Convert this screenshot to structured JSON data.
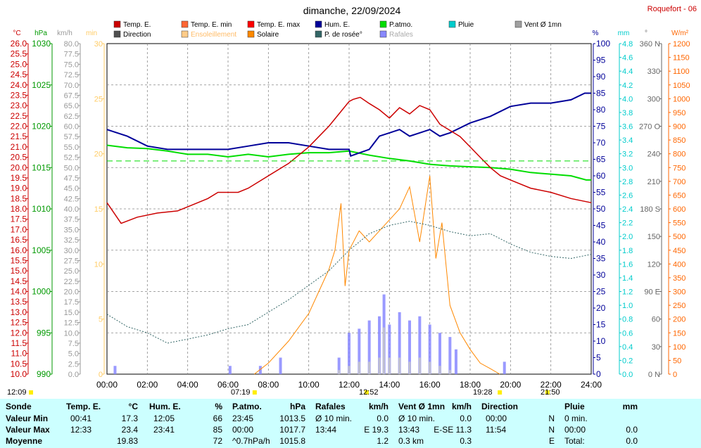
{
  "title": "dimanche, 22/09/2024",
  "station": "Roquefort - 06",
  "colors": {
    "temp": "#cc0000",
    "temp_min": "#ff6633",
    "temp_max": "#ff0000",
    "hum": "#000099",
    "patm": "#00dd00",
    "pluie": "#00cccc",
    "vent": "#a0a0a0",
    "direction": "#505050",
    "ensoleillement": "#ffcc88",
    "solaire": "#ff8800",
    "rosee": "#336666",
    "rafales": "#8888ff",
    "axis_temp": "#cc0000",
    "axis_hpa": "#009900",
    "axis_kmh": "#999999",
    "axis_min": "#ffcc66",
    "axis_pct": "#000099",
    "axis_mm": "#00cccc",
    "axis_deg": "#666666",
    "axis_wm2": "#ff6600",
    "table_bg": "#ccffff"
  },
  "legend": [
    {
      "label": "Temp. E.",
      "color": "#cc0000"
    },
    {
      "label": "Temp. E. min",
      "color": "#ff6633"
    },
    {
      "label": "Temp. E. max",
      "color": "#ff0000"
    },
    {
      "label": "Hum. E.",
      "color": "#000099"
    },
    {
      "label": "P.atmo.",
      "color": "#00dd00"
    },
    {
      "label": "Pluie",
      "color": "#00cccc"
    },
    {
      "label": "Vent Ø 1mn",
      "color": "#a0a0a0"
    },
    {
      "label": "Direction",
      "color": "#505050"
    },
    {
      "label": "Ensoleillement",
      "color": "#ffcc88"
    },
    {
      "label": "Solaire",
      "color": "#ff8800"
    },
    {
      "label": "P. de rosée°",
      "color": "#336666"
    },
    {
      "label": "Rafales",
      "color": "#8888ff"
    }
  ],
  "axis_units": {
    "temp": "°C",
    "hpa": "hPa",
    "kmh": "km/h",
    "min": "min",
    "pct": "%",
    "mm": "mm",
    "deg": "°",
    "wm2": "W/m²"
  },
  "axes": {
    "temp": [
      "26.0",
      "25.5",
      "25.0",
      "24.5",
      "24.0",
      "23.5",
      "23.0",
      "22.5",
      "22.0",
      "21.5",
      "21.0",
      "20.5",
      "20.0",
      "19.5",
      "19.0",
      "18.5",
      "18.0",
      "17.5",
      "17.0",
      "16.5",
      "16.0",
      "15.5",
      "15.0",
      "14.5",
      "14.0",
      "13.5",
      "13.0",
      "12.5",
      "12.0",
      "11.5",
      "11.0",
      "10.5",
      "10.0"
    ],
    "hpa": [
      "1030",
      "1025",
      "1020",
      "1015",
      "1010",
      "1005",
      "1000",
      "995",
      "990"
    ],
    "kmh": [
      "80.0",
      "77.5",
      "75.0",
      "72.5",
      "70.0",
      "67.5",
      "65.0",
      "62.5",
      "60.0",
      "57.5",
      "55.0",
      "52.5",
      "50.0",
      "47.5",
      "45.0",
      "42.5",
      "40.0",
      "37.5",
      "35.0",
      "32.5",
      "30.0",
      "27.5",
      "25.0",
      "22.5",
      "20.0",
      "17.5",
      "15.0",
      "12.5",
      "10.0",
      "7.5",
      "5.0",
      "2.5",
      "0.0"
    ],
    "min": [
      "30",
      "25",
      "20",
      "15",
      "10",
      "5",
      "0"
    ],
    "pct": [
      "100",
      "95",
      "90",
      "85",
      "80",
      "75",
      "70",
      "65",
      "60",
      "55",
      "50",
      "45",
      "40",
      "35",
      "30",
      "25",
      "20",
      "15",
      "10",
      "5",
      "0"
    ],
    "mm": [
      "4.8",
      "4.6",
      "4.4",
      "4.2",
      "4.0",
      "3.8",
      "3.6",
      "3.4",
      "3.2",
      "3.0",
      "2.8",
      "2.6",
      "2.4",
      "2.2",
      "2.0",
      "1.8",
      "1.6",
      "1.4",
      "1.2",
      "1.0",
      "0.8",
      "0.6",
      "0.4",
      "0.2",
      "0.0"
    ],
    "deg": [
      "360 N",
      "330",
      "300",
      "270 O",
      "240",
      "210",
      "180 S",
      "150",
      "120",
      "90 E",
      "60",
      "30",
      "0 N"
    ],
    "wm2": [
      "1200",
      "1150",
      "1100",
      "1050",
      "1000",
      "950",
      "900",
      "850",
      "800",
      "750",
      "700",
      "650",
      "600",
      "550",
      "500",
      "450",
      "400",
      "350",
      "300",
      "250",
      "200",
      "150",
      "100",
      "50",
      "0"
    ],
    "x": [
      "00:00",
      "02:00",
      "04:00",
      "06:00",
      "08:00",
      "10:00",
      "12:00",
      "14:00",
      "16:00",
      "18:00",
      "20:00",
      "22:00",
      "24:00"
    ]
  },
  "markers": {
    "t1": "12:09",
    "t2": "07:19",
    "t3": "12:52",
    "t4": "19:28",
    "t5": "21:50"
  },
  "table": {
    "headers": {
      "sonde": "Sonde",
      "temp": "Temp. E.",
      "temp_u": "°C",
      "hum": "Hum. E.",
      "hum_u": "%",
      "patm": "P.atmo.",
      "patm_u": "hPa",
      "raf": "Rafales",
      "raf_u": "km/h",
      "vent": "Vent Ø 1mn",
      "vent_u": "km/h",
      "dir": "Direction",
      "pluie": "Pluie",
      "pluie_u": "mm"
    },
    "rows": {
      "min": "Valeur Min",
      "max": "Valeur Max",
      "moy": "Moyenne"
    },
    "temp": [
      [
        "00:41",
        "17.3"
      ],
      [
        "12:33",
        "23.4"
      ],
      [
        "",
        "19.83"
      ]
    ],
    "hum": [
      [
        "12:05",
        "66"
      ],
      [
        "23:41",
        "85"
      ],
      [
        "",
        "72"
      ]
    ],
    "patm": [
      [
        "23:45",
        "1013.5"
      ],
      [
        "00:00",
        "1017.7"
      ],
      [
        "^0.7hPa/h",
        "1015.8"
      ]
    ],
    "raf": [
      [
        "Ø 10 min.",
        "0.0"
      ],
      [
        "13:44",
        "E 19.3"
      ],
      [
        "",
        "1.2"
      ]
    ],
    "vent": [
      [
        "Ø 10 min.",
        "0.0"
      ],
      [
        "13:43",
        "E-SE 11.3"
      ],
      [
        "0.3 km",
        "0.3"
      ]
    ],
    "dir": [
      [
        "00:00",
        "N"
      ],
      [
        "11:54",
        "N"
      ],
      [
        "",
        "E"
      ]
    ],
    "pluie": [
      [
        "0 min.",
        ""
      ],
      [
        "00:00",
        "0.0"
      ],
      [
        "Total:",
        "0.0"
      ]
    ]
  },
  "chart_data": {
    "type": "line",
    "title": "dimanche, 22/09/2024",
    "x_unit": "hour",
    "xlim": [
      0,
      24
    ],
    "series": [
      {
        "name": "Temp. E.",
        "unit": "°C",
        "x": [
          0,
          0.7,
          1.5,
          2.5,
          3.5,
          4,
          5,
          5.5,
          6,
          6.5,
          7,
          8,
          9,
          10,
          10.5,
          11,
          11.5,
          12,
          12.2,
          12.55,
          13,
          13.5,
          14,
          14.5,
          15,
          15.5,
          16,
          16.5,
          17,
          17.5,
          18,
          18.5,
          19,
          19.5,
          20,
          21,
          22,
          23,
          24
        ],
        "y": [
          18.3,
          17.3,
          17.6,
          17.8,
          17.9,
          18.1,
          18.5,
          18.8,
          18.8,
          18.8,
          19.0,
          19.6,
          20.2,
          21.0,
          21.5,
          22.0,
          22.6,
          23.2,
          23.3,
          23.4,
          23.1,
          22.8,
          22.4,
          22.9,
          22.6,
          23.0,
          22.8,
          22.1,
          21.8,
          21.5,
          21.0,
          20.5,
          20.0,
          19.6,
          19.4,
          19.0,
          18.8,
          18.5,
          18.3
        ]
      },
      {
        "name": "Hum. E.",
        "unit": "%",
        "x": [
          0,
          1,
          2,
          3,
          4,
          5,
          6,
          7,
          8,
          9,
          10,
          11,
          12,
          12.08,
          13,
          13.5,
          14,
          14.5,
          15,
          15.5,
          16,
          16.5,
          17,
          18,
          19,
          20,
          21,
          22,
          23,
          23.68,
          24
        ],
        "y": [
          74,
          72,
          69,
          68,
          68,
          68,
          68,
          69,
          70,
          70,
          69,
          68,
          68,
          66,
          68,
          72,
          73,
          74,
          72,
          73,
          74,
          72,
          73,
          76,
          78,
          81,
          82,
          82,
          83,
          85,
          85
        ]
      },
      {
        "name": "P.atmo.",
        "unit": "hPa",
        "x": [
          0,
          1,
          2,
          3,
          4,
          5,
          6,
          7,
          8,
          9,
          10,
          11,
          12,
          13,
          14,
          15,
          16,
          17,
          18,
          19,
          20,
          21,
          22,
          23,
          23.75,
          24
        ],
        "y": [
          1017.7,
          1017.4,
          1017.3,
          1017.0,
          1016.6,
          1016.6,
          1016.3,
          1016.6,
          1016.3,
          1016.6,
          1016.8,
          1016.8,
          1017.0,
          1016.5,
          1016.1,
          1015.8,
          1015.4,
          1015.2,
          1015.1,
          1015.0,
          1014.8,
          1014.4,
          1014.2,
          1014.0,
          1013.5,
          1013.5
        ]
      },
      {
        "name": "P. de rosée°",
        "unit": "°C",
        "x": [
          0,
          1,
          2,
          3,
          4,
          5,
          6,
          7,
          8,
          9,
          10,
          11,
          12,
          13,
          14,
          15,
          16,
          17,
          18,
          19,
          20,
          21,
          22,
          23,
          24
        ],
        "y": [
          12.9,
          12.3,
          12.0,
          11.5,
          11.7,
          11.9,
          12.2,
          12.4,
          13.0,
          13.6,
          14.3,
          15.0,
          16.0,
          16.8,
          17.2,
          17.4,
          17.2,
          16.9,
          16.7,
          16.8,
          16.3,
          15.9,
          15.7,
          15.6,
          15.8
        ]
      },
      {
        "name": "Solaire",
        "unit": "W/m²",
        "x": [
          7.3,
          8,
          9,
          10,
          10.5,
          11,
          11.3,
          11.6,
          11.8,
          12,
          12.5,
          13,
          13.5,
          14,
          14.5,
          15,
          15.5,
          16,
          16.3,
          16.6,
          17,
          17.5,
          18,
          18.5,
          19,
          19.47
        ],
        "y": [
          0,
          40,
          120,
          220,
          300,
          380,
          450,
          620,
          320,
          450,
          520,
          480,
          520,
          560,
          600,
          680,
          480,
          720,
          420,
          550,
          250,
          150,
          90,
          40,
          20,
          0
        ]
      },
      {
        "name": "Rafales",
        "unit": "km/h",
        "x": [
          0.4,
          6.1,
          7.6,
          8.6,
          11.5,
          12,
          12.5,
          13,
          13.5,
          13.73,
          14,
          14.5,
          15,
          15.5,
          16,
          16.5,
          17,
          17.3,
          19.7,
          20
        ],
        "y": [
          2,
          2,
          2,
          4,
          4,
          10,
          11,
          13,
          14,
          19.3,
          12,
          15,
          13,
          14,
          12,
          10,
          9,
          6,
          3,
          0
        ]
      },
      {
        "name": "Vent Ø 1mn",
        "unit": "km/h",
        "x": [
          11.5,
          12,
          12.5,
          13,
          13.5,
          13.72,
          14,
          14.5,
          15,
          15.5,
          16,
          16.5,
          17,
          17.5
        ],
        "y": [
          1,
          2,
          3,
          3,
          4,
          11.3,
          4,
          4,
          3,
          4,
          3,
          2,
          1,
          0
        ]
      }
    ],
    "grid": true
  }
}
